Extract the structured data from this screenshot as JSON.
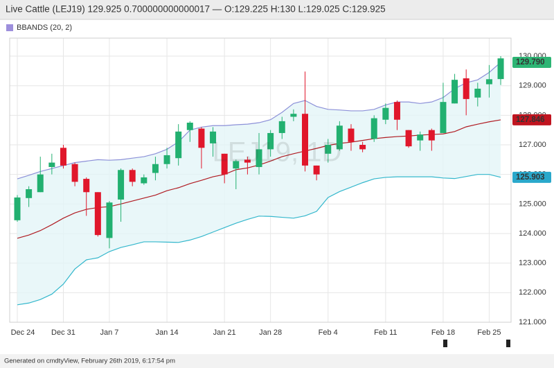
{
  "chart_data": {
    "type": "candlestick",
    "title": "Live Cattle (LEJ19) 129.925 0.700000000000017 — O:129.225 H:130 L:129.025 C:129.925",
    "legend_label": "BBANDS (20, 2)",
    "legend_color": "#9d8fdc",
    "watermark": "LEJ19, 1D",
    "footer": "Generated on cmdtyView, February 26th 2019, 6:17:54 pm",
    "categories": [
      "Dec 24",
      null,
      null,
      null,
      "Dec 31",
      null,
      null,
      null,
      "Jan 7",
      null,
      null,
      null,
      null,
      "Jan 14",
      null,
      null,
      null,
      null,
      "Jan 21",
      null,
      null,
      null,
      "Jan 28",
      null,
      null,
      null,
      null,
      "Feb 4",
      null,
      null,
      null,
      null,
      "Feb 11",
      null,
      null,
      null,
      null,
      "Feb 18",
      null,
      null,
      null,
      "Feb 25",
      null
    ],
    "open": [
      124.45,
      125.2,
      125.4,
      126.25,
      126.9,
      126.35,
      125.85,
      125.4,
      123.85,
      125.15,
      126.15,
      125.7,
      126.05,
      126.35,
      126.55,
      127.5,
      127.55,
      127.05,
      126.7,
      126.2,
      126.5,
      126.25,
      126.85,
      127.4,
      127.95,
      128.05,
      126.3,
      126.7,
      126.85,
      127.55,
      127.0,
      127.2,
      127.85,
      128.45,
      127.5,
      127.15,
      127.5,
      127.4,
      128.4,
      129.25,
      128.6,
      129.05,
      129.225
    ],
    "high": [
      125.3,
      125.6,
      126.6,
      126.7,
      127.0,
      126.4,
      125.9,
      125.4,
      125.1,
      126.2,
      126.2,
      126.0,
      126.6,
      126.9,
      127.7,
      127.8,
      127.6,
      127.6,
      126.7,
      126.5,
      126.6,
      127.4,
      127.5,
      127.95,
      128.2,
      129.48,
      126.3,
      127.2,
      127.8,
      127.7,
      127.1,
      128.0,
      128.4,
      128.5,
      127.5,
      127.45,
      127.55,
      129.1,
      129.4,
      129.55,
      129.1,
      129.7,
      130
    ],
    "low": [
      124.4,
      124.9,
      125.4,
      126.0,
      126.2,
      125.6,
      124.6,
      123.9,
      123.5,
      124.4,
      125.6,
      125.65,
      125.8,
      126.2,
      126.3,
      127.1,
      126.2,
      126.6,
      125.7,
      125.5,
      126.0,
      126.0,
      126.6,
      127.2,
      127.8,
      126.1,
      125.8,
      126.4,
      126.8,
      126.8,
      126.75,
      127.1,
      127.7,
      127.5,
      126.9,
      126.8,
      126.8,
      127.4,
      128.4,
      128.0,
      128.3,
      128.6,
      129.025
    ],
    "close": [
      125.22,
      125.5,
      126.0,
      126.4,
      126.3,
      125.75,
      125.4,
      123.95,
      125.05,
      126.15,
      125.75,
      125.9,
      126.35,
      126.65,
      127.45,
      127.75,
      126.9,
      127.45,
      126.0,
      126.45,
      126.4,
      126.85,
      127.4,
      127.8,
      128.05,
      126.3,
      126.0,
      127.0,
      127.65,
      127.1,
      126.85,
      127.9,
      128.25,
      127.85,
      126.95,
      127.35,
      127.15,
      128.45,
      129.2,
      128.55,
      128.9,
      129.22,
      129.925
    ],
    "up_color": "#22b070",
    "down_color": "#e0172b",
    "overlays": [
      {
        "color": "#8c90d8",
        "label_color": "#2db574",
        "values": [
          125.85,
          125.97,
          126.1,
          126.2,
          126.3,
          126.4,
          126.45,
          126.5,
          126.48,
          126.5,
          126.55,
          126.6,
          126.7,
          126.85,
          127.1,
          127.5,
          127.6,
          127.65,
          127.65,
          127.68,
          127.7,
          127.75,
          127.85,
          128.1,
          128.4,
          128.5,
          128.3,
          128.2,
          128.18,
          128.15,
          128.15,
          128.2,
          128.35,
          128.45,
          128.45,
          128.4,
          128.45,
          128.6,
          128.9,
          129.1,
          129.2,
          129.45,
          129.79
        ],
        "value_labels": [
          null,
          null,
          null,
          null,
          null,
          null,
          null,
          null,
          null,
          null,
          null,
          null,
          null,
          null,
          null,
          null,
          null,
          null,
          null,
          null,
          null,
          null,
          null,
          null,
          null,
          null,
          null,
          null,
          null,
          null,
          null,
          null,
          null,
          null,
          null,
          null,
          null,
          null,
          null,
          null,
          null,
          null,
          "129.790"
        ]
      },
      {
        "color": "#b01b22",
        "label_color": "#c0141f",
        "values": [
          123.84,
          123.95,
          124.1,
          124.3,
          124.52,
          124.7,
          124.82,
          124.88,
          124.91,
          125.0,
          125.1,
          125.2,
          125.3,
          125.45,
          125.55,
          125.69,
          125.8,
          125.92,
          126.0,
          126.16,
          126.22,
          126.32,
          126.45,
          126.6,
          126.7,
          126.79,
          126.88,
          126.98,
          127.05,
          127.09,
          127.15,
          127.21,
          127.25,
          127.28,
          127.3,
          127.33,
          127.35,
          127.37,
          127.45,
          127.61,
          127.7,
          127.78,
          127.846
        ],
        "value_labels": [
          null,
          null,
          null,
          null,
          null,
          null,
          null,
          null,
          null,
          null,
          null,
          null,
          null,
          null,
          null,
          null,
          null,
          null,
          null,
          null,
          null,
          null,
          null,
          null,
          null,
          null,
          null,
          null,
          null,
          null,
          null,
          null,
          null,
          null,
          null,
          null,
          null,
          null,
          null,
          null,
          null,
          null,
          "127.846"
        ]
      },
      {
        "color": "#33b7cc",
        "label_color": "#2aa8cb",
        "values": [
          121.59,
          121.65,
          121.77,
          121.95,
          122.29,
          122.8,
          123.11,
          123.18,
          123.39,
          123.53,
          123.62,
          123.72,
          123.72,
          123.71,
          123.7,
          123.78,
          123.9,
          124.05,
          124.2,
          124.35,
          124.48,
          124.59,
          124.58,
          124.55,
          124.52,
          124.6,
          124.75,
          125.22,
          125.42,
          125.57,
          125.72,
          125.85,
          125.9,
          125.92,
          125.92,
          125.92,
          125.92,
          125.88,
          125.86,
          125.93,
          126.0,
          126.0,
          125.903
        ],
        "value_labels": [
          null,
          null,
          null,
          null,
          null,
          null,
          null,
          null,
          null,
          null,
          null,
          null,
          null,
          null,
          null,
          null,
          null,
          null,
          null,
          null,
          null,
          null,
          null,
          null,
          null,
          null,
          null,
          null,
          null,
          null,
          null,
          null,
          null,
          null,
          null,
          null,
          null,
          null,
          null,
          null,
          null,
          null,
          "125.903"
        ]
      }
    ],
    "band_fill": "#e3f5f7",
    "ylim": [
      121,
      130.61
    ],
    "yticks": [
      {
        "value": 121,
        "label": "121.000"
      },
      {
        "value": 122,
        "label": "122.000"
      },
      {
        "value": 123,
        "label": "123.000"
      },
      {
        "value": 124,
        "label": "124.000"
      },
      {
        "value": 125,
        "label": "125.000"
      },
      {
        "value": 126,
        "label": "126.000"
      },
      {
        "value": 127,
        "label": "127.000"
      },
      {
        "value": 128,
        "label": "128.000"
      },
      {
        "value": 129,
        "label": "129.000"
      },
      {
        "value": 130,
        "label": "130.000"
      }
    ],
    "grid": true
  }
}
